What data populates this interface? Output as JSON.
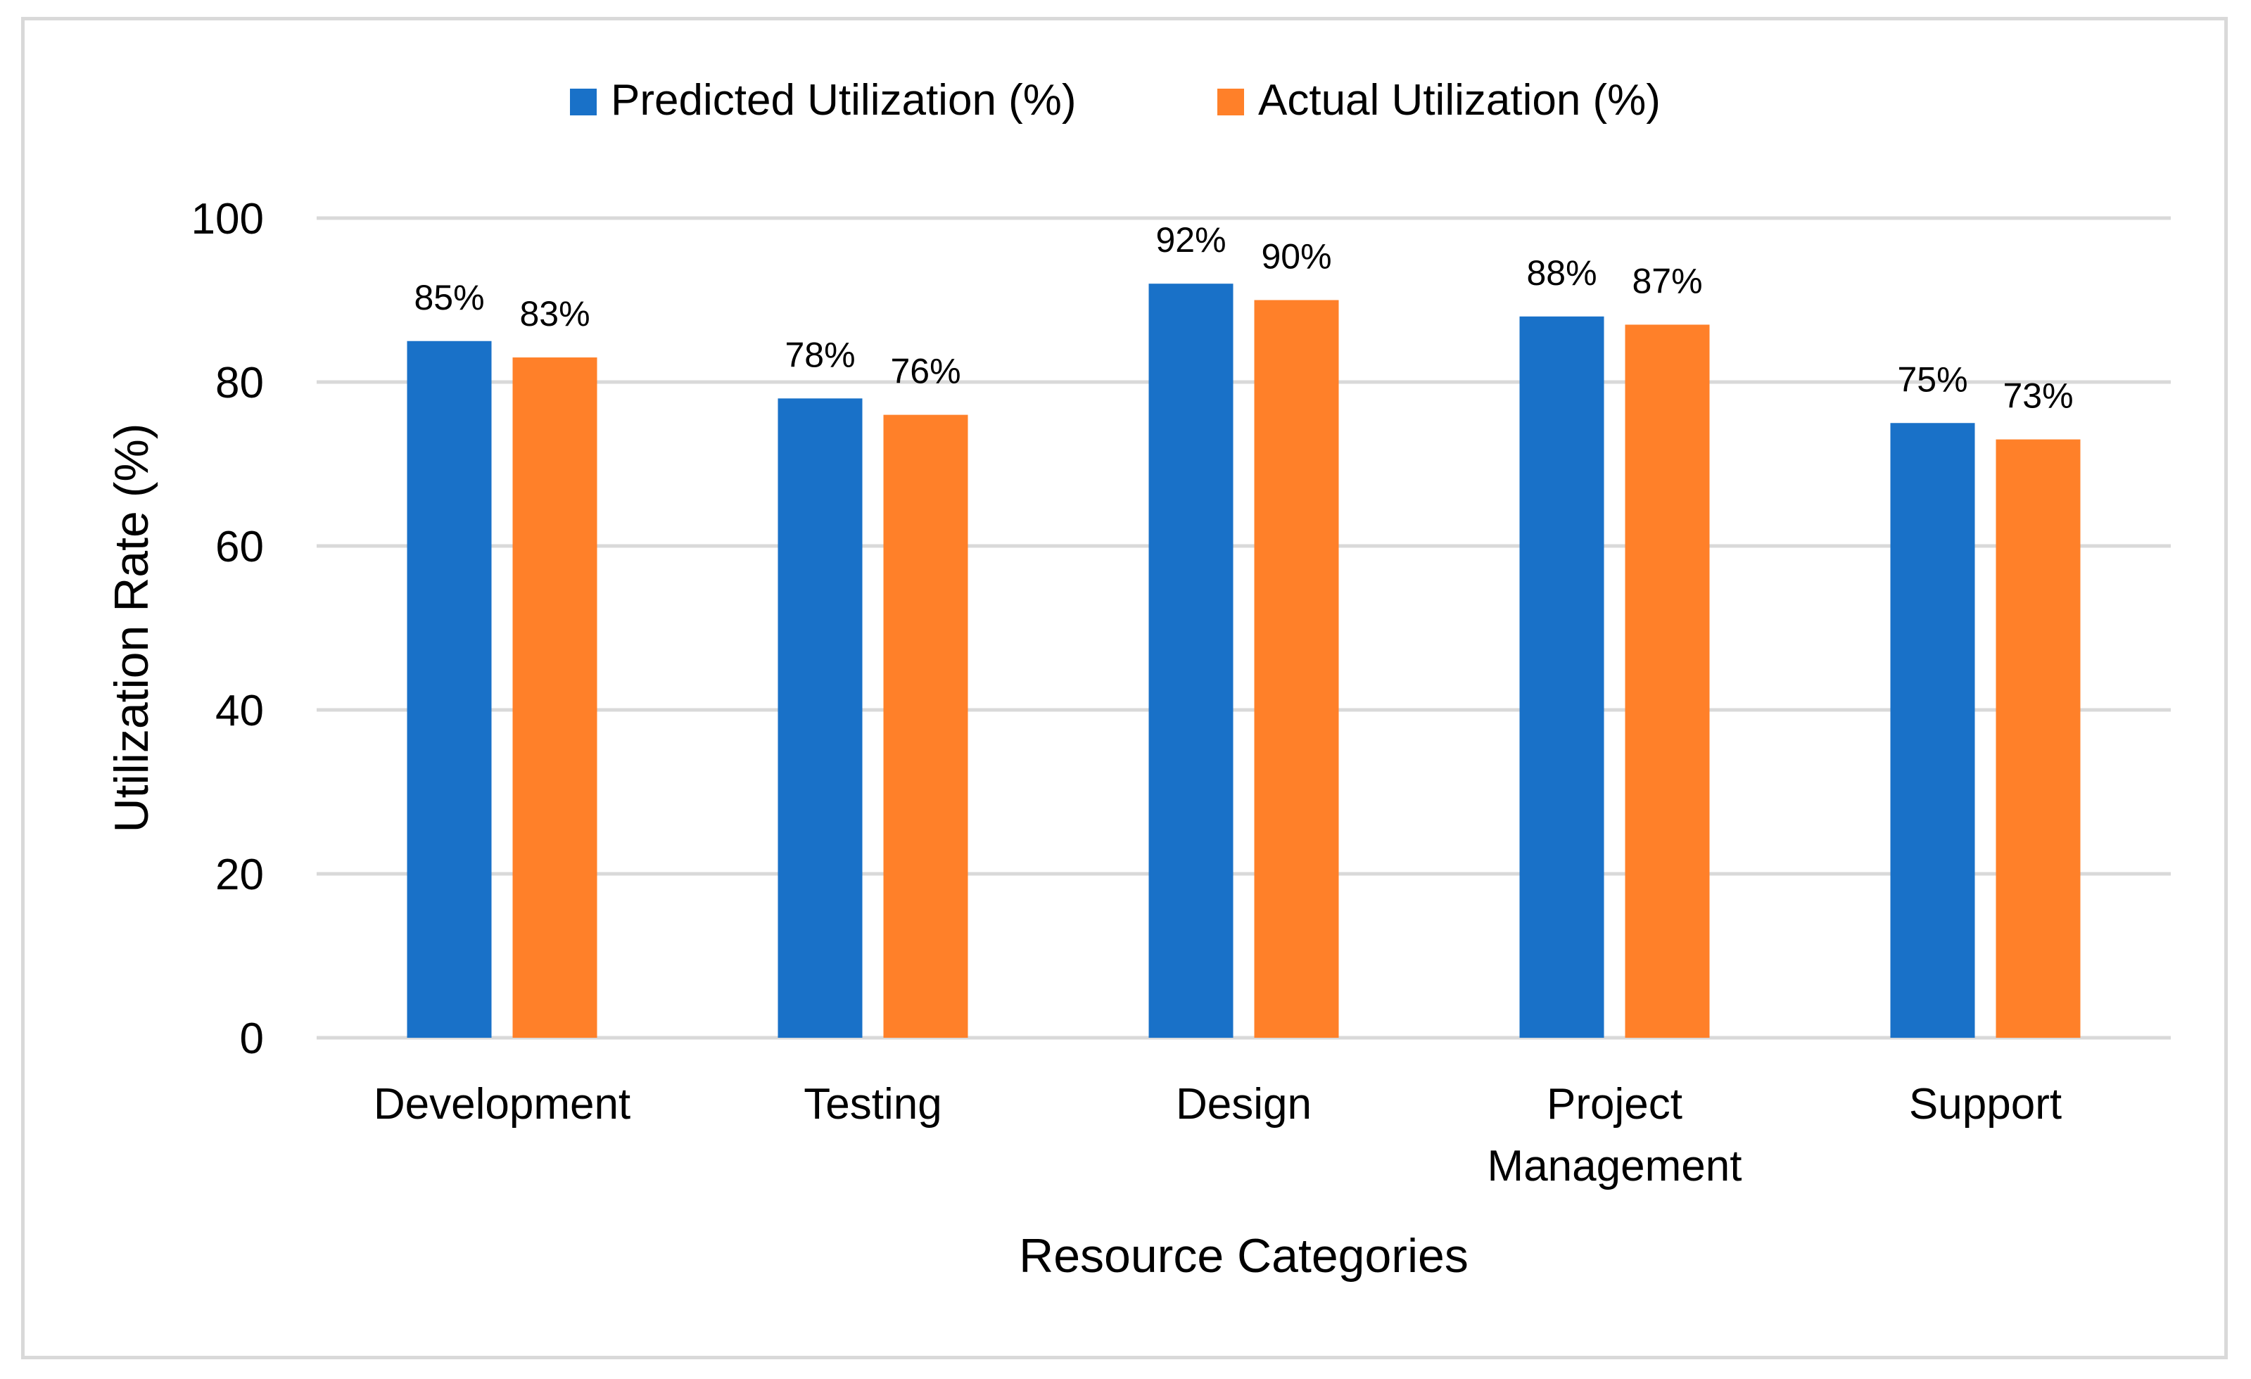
{
  "chart_data": {
    "type": "bar",
    "title": "",
    "xlabel": "Resource Categories",
    "ylabel": "Utilization Rate (%)",
    "ylim": [
      0,
      100
    ],
    "yticks": [
      0,
      20,
      40,
      60,
      80,
      100
    ],
    "grid": true,
    "legend_position": "top-center",
    "categories": [
      [
        "Development"
      ],
      [
        "Testing"
      ],
      [
        "Design"
      ],
      [
        "Project",
        "Management"
      ],
      [
        "Support"
      ]
    ],
    "series": [
      {
        "name": "Predicted Utilization (%)",
        "color": "#1971c8",
        "values": [
          85,
          78,
          92,
          88,
          75
        ],
        "labels": [
          "85%",
          "78%",
          "92%",
          "88%",
          "75%"
        ]
      },
      {
        "name": "Actual Utilization (%)",
        "color": "#ff8029",
        "values": [
          83,
          76,
          90,
          87,
          73
        ],
        "labels": [
          "83%",
          "76%",
          "90%",
          "87%",
          "73%"
        ]
      }
    ]
  }
}
